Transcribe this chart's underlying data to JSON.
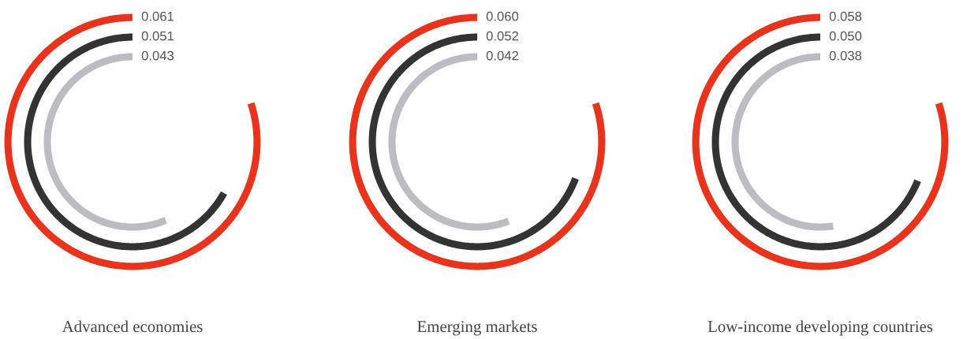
{
  "chart_data": [
    {
      "type": "other",
      "title": "Advanced economies",
      "categories": [
        null,
        null,
        null
      ],
      "values": [
        0.061,
        0.051,
        0.043
      ],
      "value_labels": [
        "0.061",
        "0.051",
        "0.043"
      ],
      "colors": [
        "#e8341c",
        "#333333",
        "#bdbcc2"
      ]
    },
    {
      "type": "other",
      "title": "Emerging markets",
      "categories": [
        null,
        null,
        null
      ],
      "values": [
        0.06,
        0.052,
        0.042
      ],
      "value_labels": [
        "0.060",
        "0.052",
        "0.042"
      ],
      "colors": [
        "#e8341c",
        "#333333",
        "#bdbcc2"
      ]
    },
    {
      "type": "other",
      "title": "Low-income developing countries",
      "categories": [
        null,
        null,
        null
      ],
      "values": [
        0.058,
        0.05,
        0.038
      ],
      "value_labels": [
        "0.058",
        "0.050",
        "0.038"
      ],
      "colors": [
        "#e8341c",
        "#333333",
        "#bdbcc2"
      ]
    }
  ]
}
